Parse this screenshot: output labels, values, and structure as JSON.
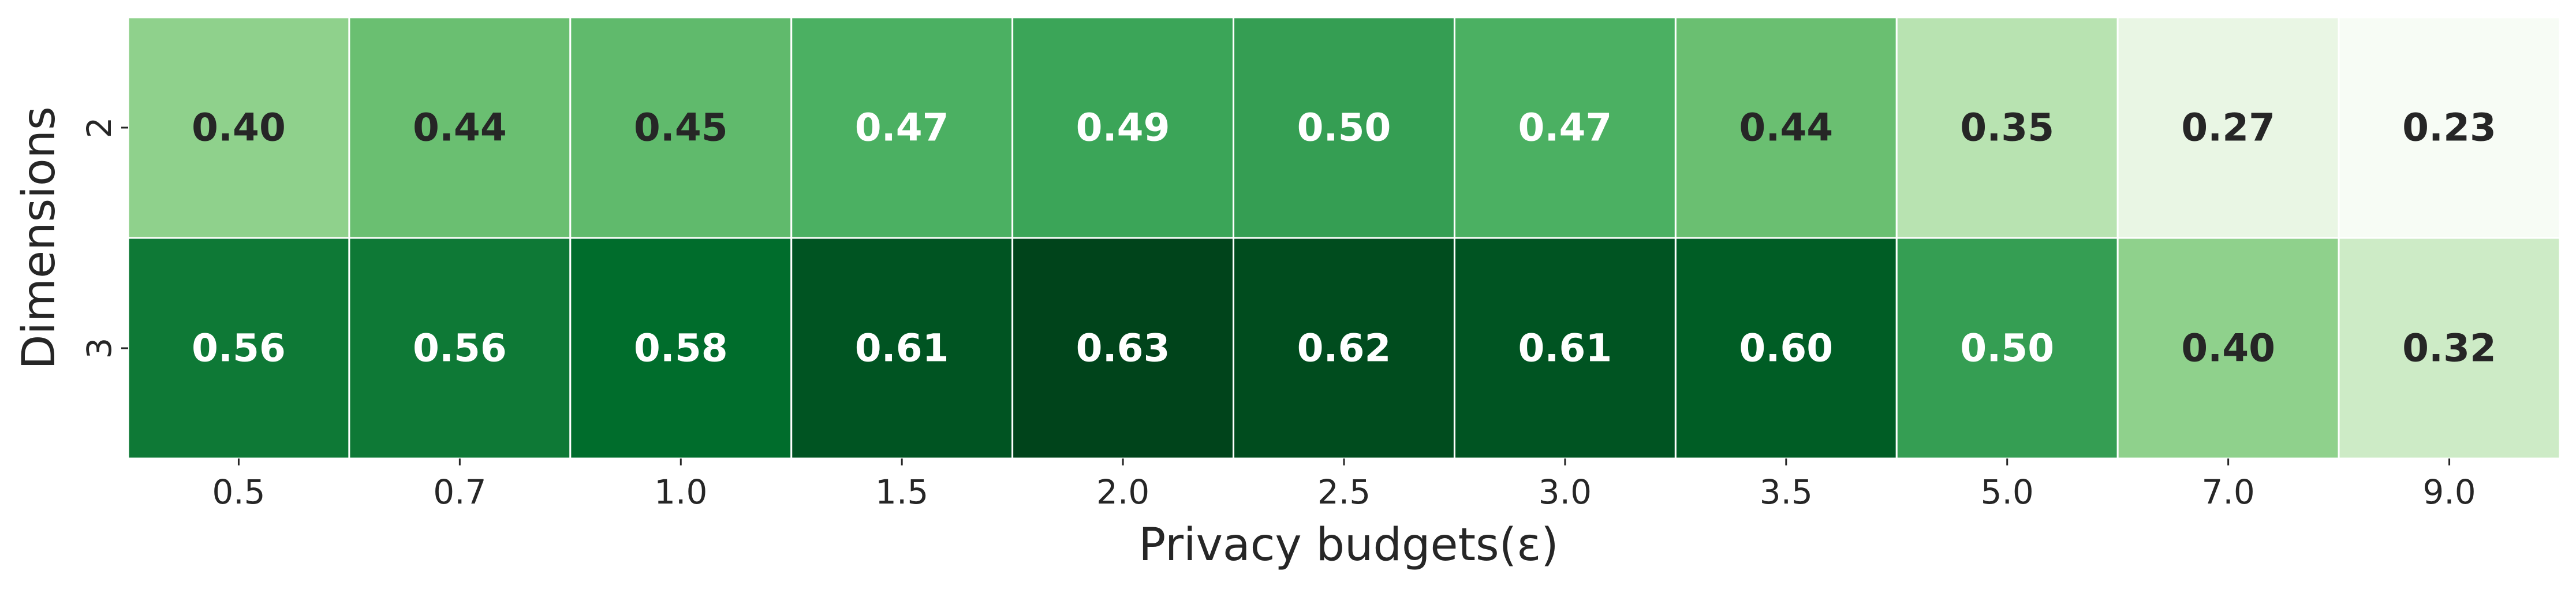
{
  "chart_data": {
    "type": "heatmap",
    "title": "",
    "xlabel": "Privacy budgets(ε)",
    "ylabel": "Dimensions",
    "x": [
      "0.5",
      "0.7",
      "1.0",
      "1.5",
      "2.0",
      "2.5",
      "3.0",
      "3.5",
      "5.0",
      "7.0",
      "9.0"
    ],
    "y": [
      "2",
      "3"
    ],
    "values": [
      [
        0.4,
        0.44,
        0.45,
        0.47,
        0.49,
        0.5,
        0.47,
        0.44,
        0.35,
        0.27,
        0.23
      ],
      [
        0.56,
        0.56,
        0.58,
        0.61,
        0.63,
        0.62,
        0.61,
        0.6,
        0.5,
        0.4,
        0.32
      ]
    ],
    "value_labels": [
      [
        "0.40",
        "0.44",
        "0.45",
        "0.47",
        "0.49",
        "0.50",
        "0.47",
        "0.44",
        "0.35",
        "0.27",
        "0.23"
      ],
      [
        "0.56",
        "0.56",
        "0.58",
        "0.61",
        "0.63",
        "0.62",
        "0.61",
        "0.60",
        "0.50",
        "0.40",
        "0.32"
      ]
    ],
    "colormap": "Greens",
    "colorbar": false,
    "grid_line_color": "#ffffff",
    "annotation_dark_color": "#262626",
    "annotation_light_color": "#ffffff"
  }
}
